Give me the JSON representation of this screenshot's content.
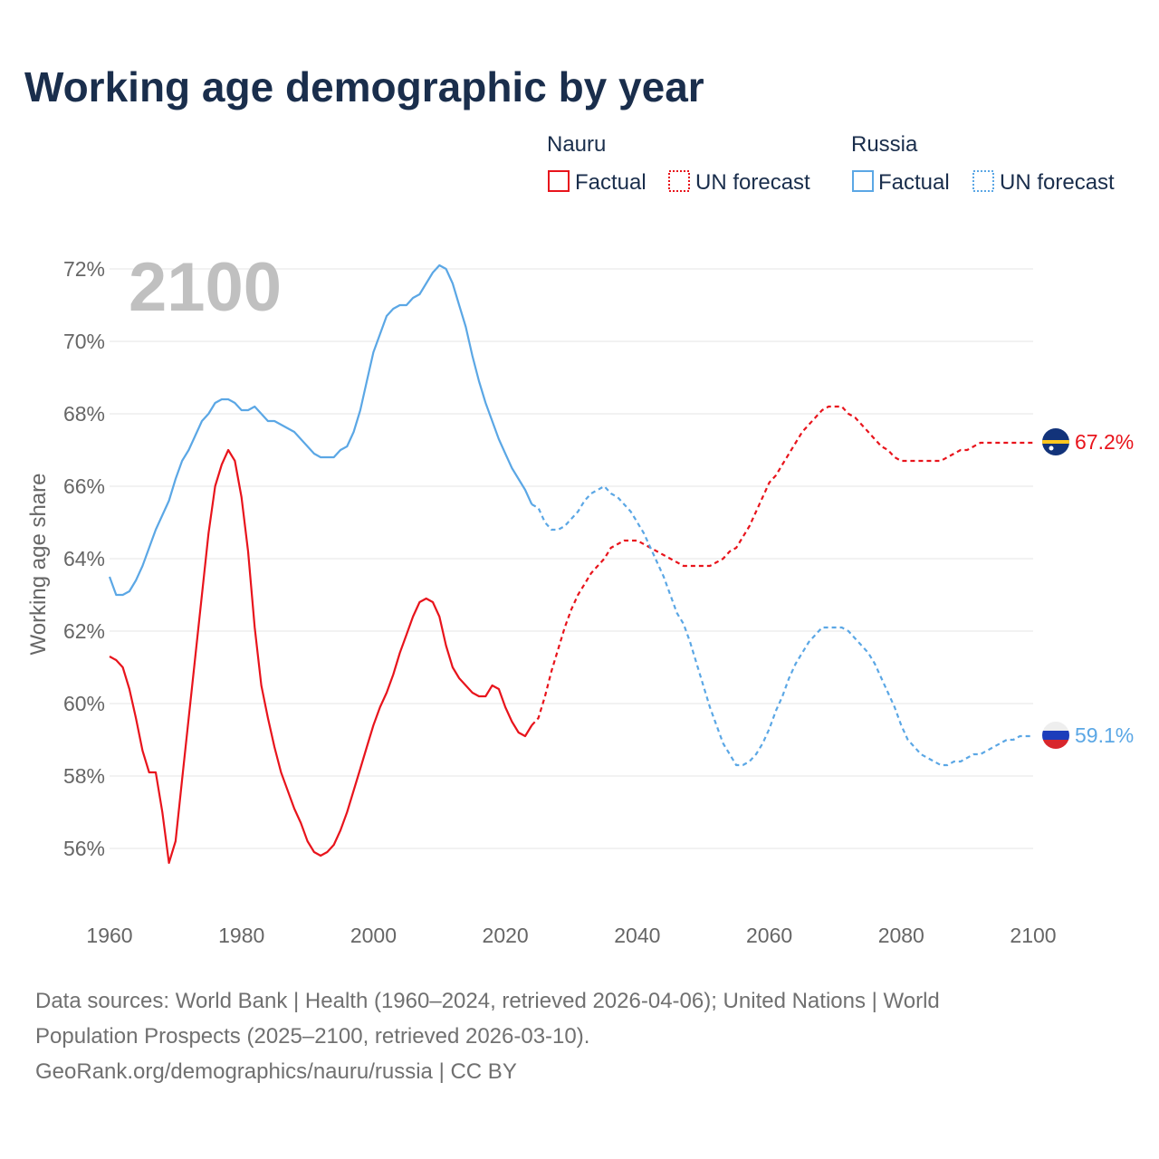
{
  "colors": {
    "nauru": "#e8141c",
    "russia": "#5ba7e5",
    "title": "#1a2e4c",
    "axis_text": "#666666",
    "grid": "#e6e6e6",
    "year_watermark": "#c0c0c0",
    "source_text": "#707070"
  },
  "legend": {
    "groups": [
      {
        "name": "Nauru",
        "factual_label": "Factual",
        "forecast_label": "UN forecast"
      },
      {
        "name": "Russia",
        "factual_label": "Factual",
        "forecast_label": "UN forecast"
      }
    ]
  },
  "year_watermark": "2100",
  "end_labels": {
    "nauru": "67.2%",
    "russia": "59.1%"
  },
  "flags": {
    "nauru": "nauru-flag-icon",
    "russia": "russia-flag-icon"
  },
  "source": {
    "line1": "Data sources: World Bank | Health (1960–2024, retrieved 2026-04-06); United Nations | World",
    "line2": "Population Prospects (2025–2100, retrieved 2026-03-10).",
    "line3": "GeoRank.org/demographics/nauru/russia | CC BY"
  },
  "chart_data": {
    "type": "line",
    "title": "Working age demographic by year",
    "xlabel": "",
    "ylabel": "Working age share",
    "xlim": [
      1960,
      2100
    ],
    "ylim": [
      55,
      73
    ],
    "x_ticks": [
      1960,
      1980,
      2000,
      2020,
      2040,
      2060,
      2080,
      2100
    ],
    "y_ticks": [
      56,
      58,
      60,
      62,
      64,
      66,
      68,
      70,
      72
    ],
    "y_tick_labels": [
      "56%",
      "58%",
      "60%",
      "62%",
      "64%",
      "66%",
      "68%",
      "70%",
      "72%"
    ],
    "x_tick_labels": [
      "1960",
      "1980",
      "2000",
      "2020",
      "2040",
      "2060",
      "2080",
      "2100"
    ],
    "grid": true,
    "series": [
      {
        "name": "Nauru",
        "segment": "Factual",
        "x": [
          1960,
          1961,
          1962,
          1963,
          1964,
          1965,
          1966,
          1967,
          1968,
          1969,
          1970,
          1971,
          1972,
          1973,
          1974,
          1975,
          1976,
          1977,
          1978,
          1979,
          1980,
          1981,
          1982,
          1983,
          1984,
          1985,
          1986,
          1987,
          1988,
          1989,
          1990,
          1991,
          1992,
          1993,
          1994,
          1995,
          1996,
          1997,
          1998,
          1999,
          2000,
          2001,
          2002,
          2003,
          2004,
          2005,
          2006,
          2007,
          2008,
          2009,
          2010,
          2011,
          2012,
          2013,
          2014,
          2015,
          2016,
          2017,
          2018,
          2019,
          2020,
          2021,
          2022,
          2023,
          2024
        ],
        "values": [
          61.3,
          61.2,
          61.0,
          60.4,
          59.6,
          58.7,
          58.1,
          58.1,
          57.0,
          55.6,
          56.2,
          57.9,
          59.6,
          61.3,
          63.0,
          64.7,
          66.0,
          66.6,
          67.0,
          66.7,
          65.7,
          64.2,
          62.1,
          60.5,
          59.6,
          58.8,
          58.1,
          57.6,
          57.1,
          56.7,
          56.2,
          55.9,
          55.8,
          55.9,
          56.1,
          56.5,
          57.0,
          57.6,
          58.2,
          58.8,
          59.4,
          59.9,
          60.3,
          60.8,
          61.4,
          61.9,
          62.4,
          62.8,
          62.9,
          62.8,
          62.4,
          61.6,
          61.0,
          60.7,
          60.5,
          60.3,
          60.2,
          60.2,
          60.5,
          60.4,
          59.9,
          59.5,
          59.2,
          59.1,
          59.4
        ]
      },
      {
        "name": "Nauru",
        "segment": "UN forecast",
        "x": [
          2024,
          2025,
          2026,
          2027,
          2028,
          2029,
          2030,
          2031,
          2032,
          2033,
          2034,
          2035,
          2036,
          2037,
          2038,
          2039,
          2040,
          2041,
          2042,
          2043,
          2044,
          2045,
          2046,
          2047,
          2048,
          2049,
          2050,
          2051,
          2052,
          2053,
          2054,
          2055,
          2056,
          2057,
          2058,
          2059,
          2060,
          2061,
          2062,
          2063,
          2064,
          2065,
          2066,
          2067,
          2068,
          2069,
          2070,
          2071,
          2072,
          2073,
          2074,
          2075,
          2076,
          2077,
          2078,
          2079,
          2080,
          2081,
          2082,
          2083,
          2084,
          2085,
          2086,
          2087,
          2088,
          2089,
          2090,
          2091,
          2092,
          2093,
          2094,
          2095,
          2096,
          2097,
          2098,
          2099,
          2100
        ],
        "values": [
          59.4,
          59.6,
          60.2,
          60.9,
          61.5,
          62.1,
          62.6,
          63.0,
          63.3,
          63.6,
          63.8,
          64.0,
          64.3,
          64.4,
          64.5,
          64.5,
          64.5,
          64.4,
          64.3,
          64.2,
          64.1,
          64.0,
          63.9,
          63.8,
          63.8,
          63.8,
          63.8,
          63.8,
          63.9,
          64.0,
          64.2,
          64.3,
          64.6,
          64.9,
          65.3,
          65.7,
          66.1,
          66.3,
          66.6,
          66.9,
          67.2,
          67.5,
          67.7,
          67.9,
          68.1,
          68.2,
          68.2,
          68.2,
          68.0,
          67.9,
          67.7,
          67.5,
          67.3,
          67.1,
          67.0,
          66.8,
          66.7,
          66.7,
          66.7,
          66.7,
          66.7,
          66.7,
          66.7,
          66.8,
          66.9,
          67.0,
          67.0,
          67.1,
          67.2,
          67.2,
          67.2,
          67.2,
          67.2,
          67.2,
          67.2,
          67.2,
          67.2
        ]
      },
      {
        "name": "Russia",
        "segment": "Factual",
        "x": [
          1960,
          1961,
          1962,
          1963,
          1964,
          1965,
          1966,
          1967,
          1968,
          1969,
          1970,
          1971,
          1972,
          1973,
          1974,
          1975,
          1976,
          1977,
          1978,
          1979,
          1980,
          1981,
          1982,
          1983,
          1984,
          1985,
          1986,
          1987,
          1988,
          1989,
          1990,
          1991,
          1992,
          1993,
          1994,
          1995,
          1996,
          1997,
          1998,
          1999,
          2000,
          2001,
          2002,
          2003,
          2004,
          2005,
          2006,
          2007,
          2008,
          2009,
          2010,
          2011,
          2012,
          2013,
          2014,
          2015,
          2016,
          2017,
          2018,
          2019,
          2020,
          2021,
          2022,
          2023,
          2024
        ],
        "values": [
          63.5,
          63.0,
          63.0,
          63.1,
          63.4,
          63.8,
          64.3,
          64.8,
          65.2,
          65.6,
          66.2,
          66.7,
          67.0,
          67.4,
          67.8,
          68.0,
          68.3,
          68.4,
          68.4,
          68.3,
          68.1,
          68.1,
          68.2,
          68.0,
          67.8,
          67.8,
          67.7,
          67.6,
          67.5,
          67.3,
          67.1,
          66.9,
          66.8,
          66.8,
          66.8,
          67.0,
          67.1,
          67.5,
          68.1,
          68.9,
          69.7,
          70.2,
          70.7,
          70.9,
          71.0,
          71.0,
          71.2,
          71.3,
          71.6,
          71.9,
          72.1,
          72.0,
          71.6,
          71.0,
          70.4,
          69.6,
          68.9,
          68.3,
          67.8,
          67.3,
          66.9,
          66.5,
          66.2,
          65.9,
          65.5
        ]
      },
      {
        "name": "Russia",
        "segment": "UN forecast",
        "x": [
          2024,
          2025,
          2026,
          2027,
          2028,
          2029,
          2030,
          2031,
          2032,
          2033,
          2034,
          2035,
          2036,
          2037,
          2038,
          2039,
          2040,
          2041,
          2042,
          2043,
          2044,
          2045,
          2046,
          2047,
          2048,
          2049,
          2050,
          2051,
          2052,
          2053,
          2054,
          2055,
          2056,
          2057,
          2058,
          2059,
          2060,
          2061,
          2062,
          2063,
          2064,
          2065,
          2066,
          2067,
          2068,
          2069,
          2070,
          2071,
          2072,
          2073,
          2074,
          2075,
          2076,
          2077,
          2078,
          2079,
          2080,
          2081,
          2082,
          2083,
          2084,
          2085,
          2086,
          2087,
          2088,
          2089,
          2090,
          2091,
          2092,
          2093,
          2094,
          2095,
          2096,
          2097,
          2098,
          2099,
          2100
        ],
        "values": [
          65.5,
          65.4,
          65.0,
          64.8,
          64.8,
          64.9,
          65.1,
          65.3,
          65.6,
          65.8,
          65.9,
          66.0,
          65.8,
          65.7,
          65.5,
          65.3,
          65.0,
          64.7,
          64.3,
          63.9,
          63.5,
          63.0,
          62.5,
          62.2,
          61.7,
          61.1,
          60.5,
          59.9,
          59.4,
          58.9,
          58.6,
          58.3,
          58.3,
          58.4,
          58.6,
          58.9,
          59.3,
          59.8,
          60.2,
          60.7,
          61.1,
          61.4,
          61.7,
          61.9,
          62.1,
          62.1,
          62.1,
          62.1,
          62.0,
          61.8,
          61.6,
          61.4,
          61.1,
          60.7,
          60.3,
          59.9,
          59.4,
          59.0,
          58.8,
          58.6,
          58.5,
          58.4,
          58.3,
          58.3,
          58.4,
          58.4,
          58.5,
          58.6,
          58.6,
          58.7,
          58.8,
          58.9,
          59.0,
          59.0,
          59.1,
          59.1,
          59.1
        ]
      }
    ]
  }
}
